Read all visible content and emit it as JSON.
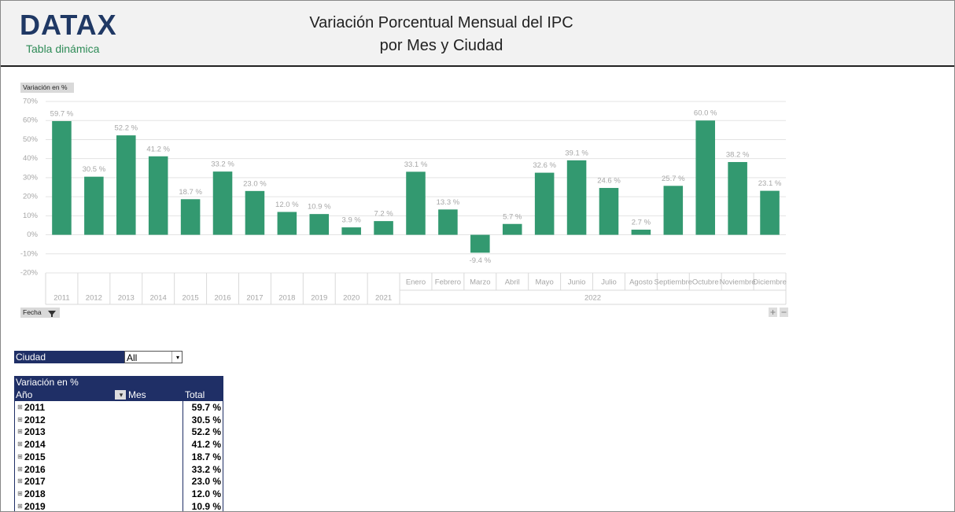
{
  "header": {
    "logo": "DATAX",
    "subtitle": "Tabla dinámica",
    "title_line1": "Variación Porcentual Mensual del IPC",
    "title_line2": "por Mes y Ciudad"
  },
  "chart_data": {
    "type": "bar",
    "measure_button": "Variación en %",
    "filter_button": "Fecha",
    "categories": [
      "2011",
      "2012",
      "2013",
      "2014",
      "2015",
      "2016",
      "2017",
      "2018",
      "2019",
      "2020",
      "2021",
      "Enero",
      "Febrero",
      "Marzo",
      "Abril",
      "Mayo",
      "Junio",
      "Julio",
      "Agosto",
      "Septiembre",
      "Octubre",
      "Noviembre",
      "Diciembre"
    ],
    "category_group_label": "2022",
    "category_group_start": "Enero",
    "values": [
      59.7,
      30.5,
      52.2,
      41.2,
      18.7,
      33.2,
      23.0,
      12.0,
      10.9,
      3.9,
      7.2,
      33.1,
      13.3,
      -9.4,
      5.7,
      32.6,
      39.1,
      24.6,
      2.7,
      25.7,
      60.0,
      38.2,
      23.1
    ],
    "value_labels": [
      "59.7 %",
      "30.5 %",
      "52.2 %",
      "41.2 %",
      "18.7 %",
      "33.2 %",
      "23.0 %",
      "12.0 %",
      "10.9 %",
      "3.9 %",
      "7.2 %",
      "33.1 %",
      "13.3 %",
      "-9.4 %",
      "5.7 %",
      "32.6 %",
      "39.1 %",
      "24.6 %",
      "2.7 %",
      "25.7 %",
      "60.0 %",
      "38.2 %",
      "23.1 %"
    ],
    "color": "#339970",
    "ylim": [
      -20,
      70
    ],
    "yticks": [
      {
        "value": -20,
        "label": "-20%"
      },
      {
        "value": -10,
        "label": "-10%"
      },
      {
        "value": 0,
        "label": "0%"
      },
      {
        "value": 10,
        "label": "10%"
      },
      {
        "value": 20,
        "label": "20%"
      },
      {
        "value": 30,
        "label": "30%"
      },
      {
        "value": 40,
        "label": "40%"
      },
      {
        "value": 50,
        "label": "50%"
      },
      {
        "value": 60,
        "label": "60%"
      },
      {
        "value": 70,
        "label": "70%"
      }
    ],
    "grid": true
  },
  "table": {
    "filter_label": "Ciudad",
    "filter_value": "All",
    "measure": "Variación en %",
    "headers": [
      "Año",
      "Mes",
      "Total"
    ],
    "rows": [
      [
        "2011",
        "59.7 %"
      ],
      [
        "2012",
        "30.5 %"
      ],
      [
        "2013",
        "52.2 %"
      ],
      [
        "2014",
        "41.2 %"
      ],
      [
        "2015",
        "18.7 %"
      ],
      [
        "2016",
        "33.2 %"
      ],
      [
        "2017",
        "23.0 %"
      ],
      [
        "2018",
        "12.0 %"
      ],
      [
        "2019",
        "10.9 %"
      ]
    ]
  }
}
